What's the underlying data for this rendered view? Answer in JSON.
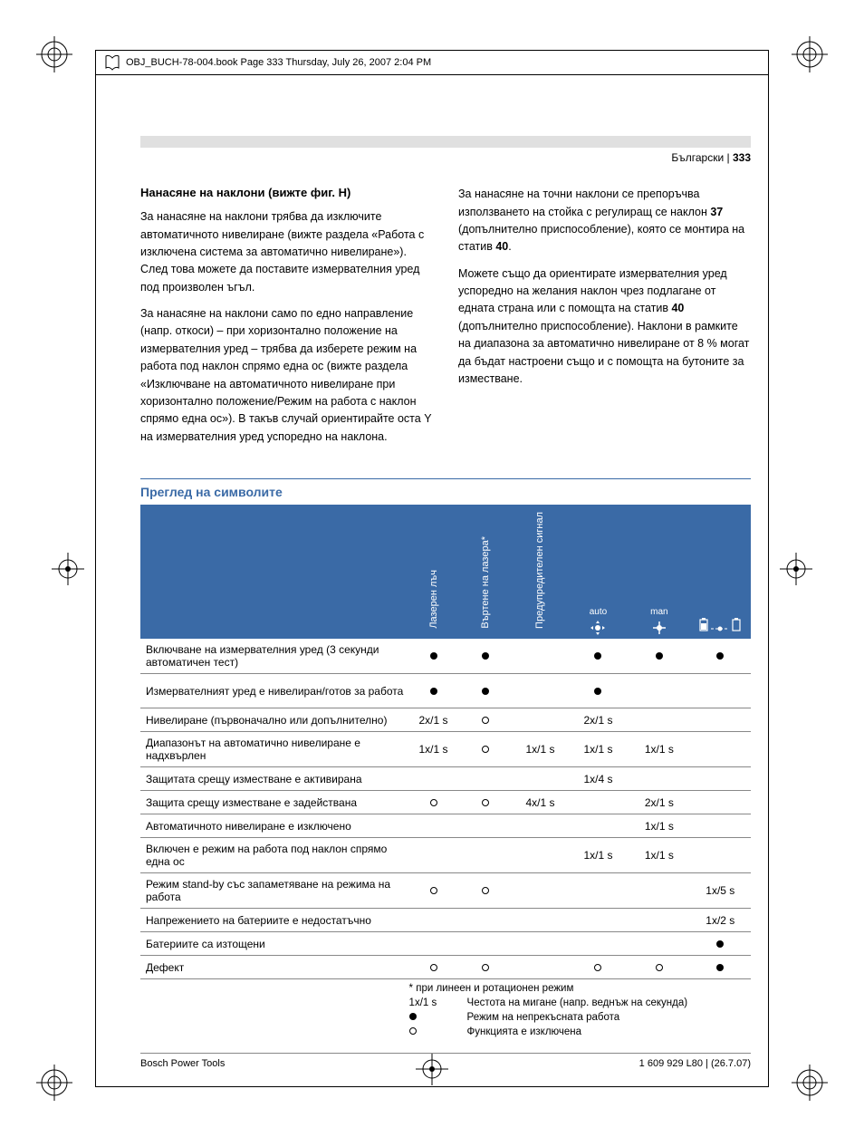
{
  "running_head": "OBJ_BUCH-78-004.book  Page 333  Thursday, July 26, 2007  2:04 PM",
  "page_head": {
    "lang": "Български",
    "sep": " | ",
    "num": "333"
  },
  "section": {
    "title": "Нанасяне на наклони (вижте фиг. H)",
    "p1": "За нанасяне на наклони трябва да изключите автоматичното нивелиране (вижте раздела «Работа с изключена система за автоматично нивелиране»). След това можете да поставите измервателния уред под произволен ъгъл.",
    "p2": "За нанасяне на наклони само по едно направ­ление (напр. откоси) – при хоризонтално положение на измервателния уред – трябва да изберете режим на работа под наклон спрямо една ос (вижте раздела «Изключване на автоматичното нивелиране при хоризонтално положение/Режим на работа с наклон спрямо една ос»). В такъв случай ориентирайте оста Y на измервателния уред успоредно на наклона.",
    "p3a": "За нанасяне на точни наклони се препоръчва използването на стойка с регулиращ се наклон ",
    "p3b": "37",
    "p3c": " (допълнително приспособление), която се монтира на статив ",
    "p3d": "40",
    "p3e": ".",
    "p4a": "Можете също да ориентирате измервателния уред успоредно на желания наклон чрез подла­гане от едната страна или с помощта на статив ",
    "p4b": "40",
    "p4c": " (допълнително приспособление). Наклони в рамките на диапазона за автоматично ниве­лиране от 8 % могат да бъдат настроени също и с помощта на бутоните за изместване."
  },
  "overview_title": "Преглед на символите",
  "table": {
    "headers": {
      "c0": "",
      "c1": "Лазерен лъч",
      "c2": "Въртене на лазера*",
      "c3": "Предупредите­лен сигнал",
      "c4": "auto",
      "c5": "man",
      "c6": ""
    },
    "rows": [
      {
        "label": "Включване на измервателния уред (3 секунди автоматичен тест)",
        "c1": "dot",
        "c2": "dot",
        "c3": "",
        "c4": "dot",
        "c5": "dot",
        "c6": "dot",
        "tall": true
      },
      {
        "label": "Измервателният уред е нивелиран/готов за работа",
        "c1": "dot",
        "c2": "dot",
        "c3": "",
        "c4": "dot",
        "c5": "",
        "c6": "",
        "tall": true
      },
      {
        "label": "Нивелиране (първоначално или допълнително)",
        "c1": "2x/1 s",
        "c2": "ring",
        "c3": "",
        "c4": "2x/1 s",
        "c5": "",
        "c6": ""
      },
      {
        "label": "Диапазонът на автоматично нивелиране е надхвърлен",
        "c1": "1x/1 s",
        "c2": "ring",
        "c3": "1x/1 s",
        "c4": "1x/1 s",
        "c5": "1x/1 s",
        "c6": "",
        "tall": true
      },
      {
        "label": "Защитата срещу изместване е активирана",
        "c1": "",
        "c2": "",
        "c3": "",
        "c4": "1x/4 s",
        "c5": "",
        "c6": ""
      },
      {
        "label": "Защита срещу изместване е задействана",
        "c1": "ring",
        "c2": "ring",
        "c3": "4x/1 s",
        "c4": "",
        "c5": "2x/1 s",
        "c6": ""
      },
      {
        "label": "Автоматичното нивелиране е изключено",
        "c1": "",
        "c2": "",
        "c3": "",
        "c4": "",
        "c5": "1x/1 s",
        "c6": ""
      },
      {
        "label": "Включен е режим на работа под наклон спрямо една ос",
        "c1": "",
        "c2": "",
        "c3": "",
        "c4": "1x/1 s",
        "c5": "1x/1 s",
        "c6": "",
        "tall": true
      },
      {
        "label": "Режим stand-by със запаметяване на режима на работа",
        "c1": "ring",
        "c2": "ring",
        "c3": "",
        "c4": "",
        "c5": "",
        "c6": "1x/5 s",
        "tall": true
      },
      {
        "label": "Напрежението на батериите е недостатъчно",
        "c1": "",
        "c2": "",
        "c3": "",
        "c4": "",
        "c5": "",
        "c6": "1x/2 s"
      },
      {
        "label": "Батериите са изтощени",
        "c1": "",
        "c2": "",
        "c3": "",
        "c4": "",
        "c5": "",
        "c6": "dot"
      },
      {
        "label": "Дефект",
        "c1": "ring",
        "c2": "ring",
        "c3": "",
        "c4": "ring",
        "c5": "ring",
        "c6": "dot"
      }
    ],
    "legend": {
      "note": "* при линеен и ротационен режим",
      "l1k": "1x/1 s",
      "l1v": "Честота на мигане (напр. веднъж на секунда)",
      "l2k": "dot",
      "l2v": "Режим на непрекъсната работа",
      "l3k": "ring",
      "l3v": "Функцията е изключена"
    }
  },
  "footer": {
    "left": "Bosch Power Tools",
    "right": "1 609 929 L80 | (26.7.07)"
  },
  "colors": {
    "accent": "#3a6aa6"
  }
}
